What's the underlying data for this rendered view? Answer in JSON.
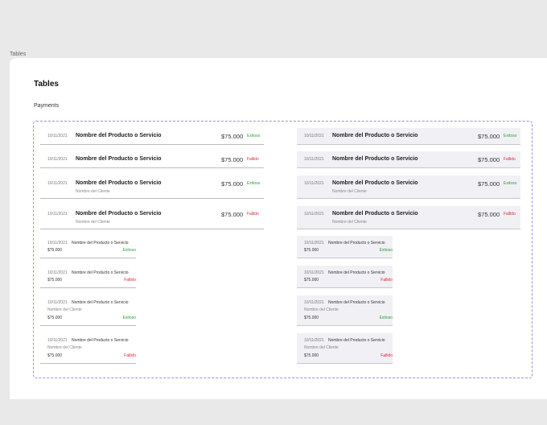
{
  "frame_label": "Tables",
  "page_title": "Tables",
  "section_title": "Payments",
  "colors": {
    "success": "#2e9b3f",
    "failed": "#d82a3a",
    "accent_dashed": "#9b8cf0"
  },
  "rows": [
    {
      "date": "10/11/2021",
      "product": "Nombre del Producto o Servicio",
      "client": "",
      "price": "$75.000",
      "status": "Exitoso",
      "kind": "ok"
    },
    {
      "date": "10/11/2021",
      "product": "Nombre del Producto o Servicio",
      "client": "",
      "price": "$75.000",
      "status": "Fallido",
      "kind": "fail"
    },
    {
      "date": "10/11/2021",
      "product": "Nombre del Producto o Servicio",
      "client": "Nombre del Cliente",
      "price": "$75.000",
      "status": "Exitoso",
      "kind": "ok"
    },
    {
      "date": "10/11/2021",
      "product": "Nombre del Producto o Servicio",
      "client": "Nombre del Cliente",
      "price": "$75.000",
      "status": "Fallido",
      "kind": "fail"
    }
  ],
  "minis": [
    {
      "date": "10/11/2021",
      "product": "Nombre del Producto o Servicio",
      "client": "",
      "price": "$75.000",
      "status": "Exitoso",
      "kind": "ok"
    },
    {
      "date": "10/11/2021",
      "product": "Nombre del Producto o Servicio",
      "client": "",
      "price": "$75.000",
      "status": "Fallido",
      "kind": "fail"
    },
    {
      "date": "10/11/2021",
      "product": "Nombre del Producto o Servicio",
      "client": "Nombre del Cliente",
      "price": "$75.000",
      "status": "Exitoso",
      "kind": "ok"
    },
    {
      "date": "10/11/2021",
      "product": "Nombre del Producto o Servicio",
      "client": "Nombre del Cliente",
      "price": "$75.000",
      "status": "Fallido",
      "kind": "fail"
    }
  ]
}
